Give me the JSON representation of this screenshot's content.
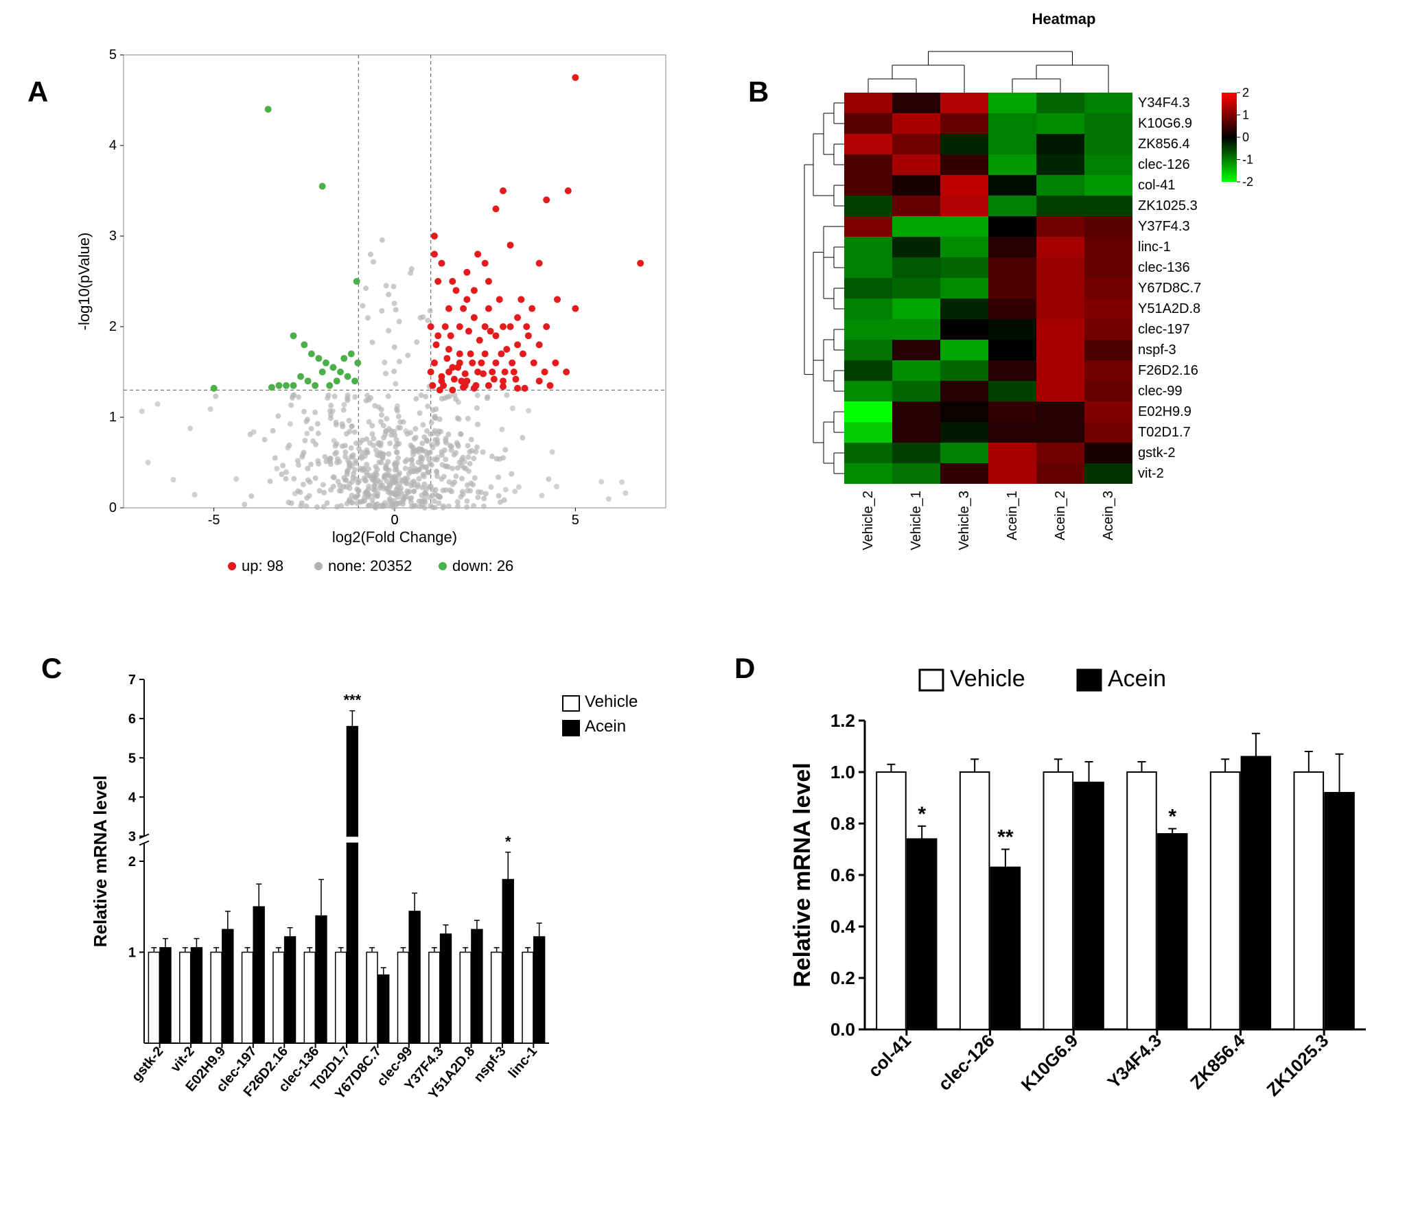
{
  "panelA": {
    "label": "A",
    "type": "scatter",
    "title": "",
    "x_label": "log2(Fold Change)",
    "y_label": "-log10(pValue)",
    "xlim": [
      -7.5,
      7.5
    ],
    "ylim": [
      0,
      5
    ],
    "ytick_step": 1,
    "xtick_step": 5,
    "background_color": "#ffffff",
    "border_color": "#888888",
    "grid_color": "#888888",
    "threshold_lines": {
      "x_neg": -1,
      "x_pos": 1,
      "y": 1.3
    },
    "legend": [
      {
        "label": "up: 98",
        "color": "#e41a1c"
      },
      {
        "label": "none: 20352",
        "color": "#b3b3b3"
      },
      {
        "label": "down: 26",
        "color": "#4daf4a"
      }
    ],
    "colors": {
      "up": "#e41a1c",
      "down": "#4daf4a",
      "none": "#b3b3b3"
    },
    "marker_size": 4,
    "axis_fontsize": 22,
    "tick_fontsize": 20,
    "legend_fontsize": 22,
    "up_points": [
      [
        5.0,
        4.75
      ],
      [
        4.8,
        3.5
      ],
      [
        4.2,
        3.4
      ],
      [
        4.0,
        2.7
      ],
      [
        3.0,
        3.5
      ],
      [
        2.8,
        3.3
      ],
      [
        3.2,
        2.9
      ],
      [
        2.5,
        2.7
      ],
      [
        2.0,
        2.3
      ],
      [
        1.2,
        2.5
      ],
      [
        1.5,
        2.2
      ],
      [
        1.8,
        2.0
      ],
      [
        2.2,
        2.1
      ],
      [
        2.6,
        2.2
      ],
      [
        3.0,
        2.0
      ],
      [
        3.4,
        1.8
      ],
      [
        3.8,
        2.2
      ],
      [
        4.0,
        1.8
      ],
      [
        4.2,
        2.0
      ],
      [
        3.5,
        2.3
      ],
      [
        3.3,
        1.5
      ],
      [
        3.0,
        1.4
      ],
      [
        2.8,
        1.6
      ],
      [
        2.5,
        1.7
      ],
      [
        2.3,
        1.5
      ],
      [
        2.0,
        1.4
      ],
      [
        1.8,
        1.7
      ],
      [
        1.5,
        1.5
      ],
      [
        1.3,
        1.4
      ],
      [
        1.1,
        1.6
      ],
      [
        1.0,
        1.5
      ],
      [
        1.25,
        1.3
      ],
      [
        1.6,
        1.3
      ],
      [
        1.9,
        1.33
      ],
      [
        2.2,
        1.32
      ],
      [
        2.6,
        1.35
      ],
      [
        3.0,
        1.34
      ],
      [
        3.4,
        1.32
      ],
      [
        1.4,
        2.0
      ],
      [
        1.7,
        2.4
      ],
      [
        2.0,
        2.6
      ],
      [
        2.3,
        2.8
      ],
      [
        2.6,
        2.5
      ],
      [
        2.9,
        2.3
      ],
      [
        3.2,
        2.0
      ],
      [
        1.1,
        2.8
      ],
      [
        1.0,
        2.0
      ],
      [
        1.15,
        1.8
      ],
      [
        1.45,
        1.65
      ],
      [
        1.75,
        1.55
      ],
      [
        2.05,
        1.95
      ],
      [
        2.35,
        1.85
      ],
      [
        2.65,
        1.95
      ],
      [
        2.95,
        1.7
      ],
      [
        3.25,
        1.6
      ],
      [
        3.55,
        1.7
      ],
      [
        3.85,
        1.6
      ],
      [
        4.15,
        1.5
      ],
      [
        4.45,
        1.6
      ],
      [
        4.75,
        1.5
      ],
      [
        1.55,
        1.9
      ],
      [
        1.85,
        1.4
      ],
      [
        2.15,
        1.6
      ],
      [
        2.45,
        1.48
      ],
      [
        2.75,
        1.42
      ],
      [
        3.05,
        1.5
      ],
      [
        3.35,
        1.42
      ],
      [
        3.65,
        2.0
      ],
      [
        1.05,
        1.35
      ],
      [
        1.35,
        1.35
      ],
      [
        1.65,
        1.42
      ],
      [
        1.95,
        1.48
      ],
      [
        4.0,
        1.4
      ],
      [
        4.3,
        1.35
      ],
      [
        4.5,
        2.3
      ],
      [
        5.0,
        2.2
      ],
      [
        6.8,
        2.7
      ],
      [
        1.1,
        3.0
      ],
      [
        1.3,
        2.7
      ],
      [
        1.6,
        2.5
      ],
      [
        1.9,
        2.2
      ],
      [
        2.2,
        2.4
      ],
      [
        2.5,
        2.0
      ],
      [
        2.8,
        1.9
      ],
      [
        3.1,
        1.75
      ],
      [
        3.4,
        2.1
      ],
      [
        3.7,
        1.9
      ],
      [
        1.2,
        1.9
      ],
      [
        1.5,
        1.75
      ],
      [
        1.8,
        1.6
      ],
      [
        2.1,
        1.7
      ],
      [
        2.4,
        1.6
      ],
      [
        2.7,
        1.5
      ],
      [
        3.6,
        1.32
      ],
      [
        1.3,
        1.45
      ],
      [
        1.6,
        1.55
      ],
      [
        1.95,
        1.35
      ],
      [
        2.25,
        1.35
      ]
    ],
    "down_points": [
      [
        -3.5,
        4.4
      ],
      [
        -2.0,
        3.55
      ],
      [
        -1.05,
        2.5
      ],
      [
        -2.8,
        1.9
      ],
      [
        -2.5,
        1.8
      ],
      [
        -2.3,
        1.7
      ],
      [
        -2.1,
        1.65
      ],
      [
        -1.9,
        1.6
      ],
      [
        -1.7,
        1.55
      ],
      [
        -1.5,
        1.5
      ],
      [
        -1.3,
        1.45
      ],
      [
        -1.1,
        1.4
      ],
      [
        -2.0,
        1.5
      ],
      [
        -2.2,
        1.35
      ],
      [
        -2.4,
        1.4
      ],
      [
        -2.6,
        1.45
      ],
      [
        -2.8,
        1.35
      ],
      [
        -3.0,
        1.35
      ],
      [
        -3.2,
        1.35
      ],
      [
        -3.4,
        1.33
      ],
      [
        -5.0,
        1.32
      ],
      [
        -1.02,
        1.6
      ],
      [
        -1.2,
        1.7
      ],
      [
        -1.4,
        1.65
      ],
      [
        -1.6,
        1.4
      ],
      [
        -1.8,
        1.35
      ]
    ],
    "none_density": 600
  },
  "panelB": {
    "label": "B",
    "type": "heatmap",
    "title": "Heatmap",
    "title_fontsize": 22,
    "row_labels": [
      "Y34F4.3",
      "K10G6.9",
      "ZK856.4",
      "clec-126",
      "col-41",
      "ZK1025.3",
      "Y37F4.3",
      "linc-1",
      "clec-136",
      "Y67D8C.7",
      "Y51A2D.8",
      "clec-197",
      "nspf-3",
      "F26D2.16",
      "clec-99",
      "E02H9.9",
      "T02D1.7",
      "gstk-2",
      "vit-2"
    ],
    "col_labels": [
      "Vehicle_2",
      "Vehicle_1",
      "Vehicle_3",
      "Acein_1",
      "Acein_2",
      "Acein_3"
    ],
    "label_fontsize": 20,
    "colorbar": {
      "min": -2,
      "max": 2,
      "ticks": [
        -2,
        -1,
        0,
        1,
        2
      ],
      "colors_neg": "#00ff00",
      "colors_mid": "#000000",
      "colors_pos": "#ff0000"
    },
    "values": [
      [
        1.2,
        0.3,
        1.4,
        -1.3,
        -0.8,
        -1.0
      ],
      [
        0.7,
        1.3,
        0.8,
        -1.0,
        -1.1,
        -0.9
      ],
      [
        1.4,
        0.9,
        -0.3,
        -1.0,
        -0.2,
        -0.9
      ],
      [
        0.6,
        1.3,
        0.4,
        -1.2,
        -0.3,
        -1.0
      ],
      [
        0.6,
        0.2,
        1.5,
        -0.1,
        -1.0,
        -1.2
      ],
      [
        -0.5,
        0.8,
        1.4,
        -1.0,
        -0.5,
        -0.5
      ],
      [
        1.0,
        -1.3,
        -1.3,
        0.0,
        0.9,
        0.7
      ],
      [
        -1.0,
        -0.3,
        -1.1,
        0.3,
        1.3,
        0.8
      ],
      [
        -1.0,
        -0.7,
        -0.8,
        0.6,
        1.2,
        0.8
      ],
      [
        -0.7,
        -0.8,
        -1.1,
        0.6,
        1.2,
        0.9
      ],
      [
        -1.0,
        -1.3,
        -0.3,
        0.4,
        1.2,
        1.0
      ],
      [
        -1.1,
        -1.1,
        0.0,
        -0.1,
        1.3,
        0.9
      ],
      [
        -0.9,
        0.3,
        -1.3,
        0.0,
        1.3,
        0.6
      ],
      [
        -0.5,
        -1.1,
        -0.8,
        0.3,
        1.3,
        0.9
      ],
      [
        -1.1,
        -0.8,
        0.3,
        -0.5,
        1.3,
        0.8
      ],
      [
        -2.0,
        0.3,
        0.1,
        0.4,
        0.3,
        1.0
      ],
      [
        -1.6,
        0.3,
        -0.2,
        0.3,
        0.3,
        0.9
      ],
      [
        -0.8,
        -0.5,
        -1.0,
        1.3,
        0.9,
        0.2
      ],
      [
        -1.1,
        -0.9,
        0.4,
        1.3,
        0.8,
        -0.4
      ]
    ]
  },
  "panelC": {
    "label": "C",
    "type": "bar",
    "y_label": "Relative mRNA level",
    "y_break": {
      "low_max": 2.2,
      "high_min": 3,
      "high_max": 7
    },
    "yticks_low": [
      1,
      2
    ],
    "yticks_high": [
      3,
      4,
      5,
      6,
      7
    ],
    "categories": [
      "gstk-2",
      "vit-2",
      "E02H9.9",
      "clec-197",
      "F26D2.16",
      "clec-136",
      "T02D1.7",
      "Y67D8C.7",
      "clec-99",
      "Y37F4.3",
      "Y51A2D.8",
      "nspf-3",
      "linc-1"
    ],
    "series": [
      {
        "name": "Vehicle",
        "fill": "#ffffff",
        "stroke": "#000000",
        "values": [
          1,
          1,
          1,
          1,
          1,
          1,
          1,
          1,
          1,
          1,
          1,
          1,
          1
        ],
        "err": [
          0.05,
          0.05,
          0.05,
          0.05,
          0.05,
          0.05,
          0.05,
          0.05,
          0.05,
          0.05,
          0.05,
          0.05,
          0.05
        ]
      },
      {
        "name": "Acein",
        "fill": "#000000",
        "stroke": "#000000",
        "values": [
          1.05,
          1.05,
          1.25,
          1.5,
          1.17,
          1.4,
          5.8,
          0.75,
          1.45,
          1.2,
          1.25,
          1.8,
          1.17
        ],
        "err": [
          0.1,
          0.1,
          0.2,
          0.25,
          0.1,
          0.4,
          0.4,
          0.08,
          0.2,
          0.1,
          0.1,
          0.3,
          0.15
        ]
      }
    ],
    "sig_marks": [
      {
        "idx": 6,
        "label": "***"
      },
      {
        "idx": 11,
        "label": "*"
      }
    ],
    "axis_fontsize": 22,
    "tick_fontsize": 20,
    "label_fontsize": 26,
    "legend_fontsize": 24,
    "bar_width": 0.35,
    "gap": 0.06
  },
  "panelD": {
    "label": "D",
    "type": "bar",
    "y_label": "Relative mRNA level",
    "ylim": [
      0,
      1.2
    ],
    "yticks": [
      0,
      0.2,
      0.4,
      0.6,
      0.8,
      1.0,
      1.2
    ],
    "categories": [
      "col-41",
      "clec-126",
      "K10G6.9",
      "Y34F4.3",
      "ZK856.4",
      "ZK1025.3"
    ],
    "series": [
      {
        "name": "Vehicle",
        "fill": "#ffffff",
        "stroke": "#000000",
        "values": [
          1.0,
          1.0,
          1.0,
          1.0,
          1.0,
          1.0
        ],
        "err": [
          0.03,
          0.05,
          0.05,
          0.04,
          0.05,
          0.08
        ]
      },
      {
        "name": "Acein",
        "fill": "#000000",
        "stroke": "#000000",
        "values": [
          0.74,
          0.63,
          0.96,
          0.76,
          1.06,
          0.92
        ],
        "err": [
          0.05,
          0.07,
          0.08,
          0.02,
          0.09,
          0.15
        ]
      }
    ],
    "sig_marks": [
      {
        "idx": 0,
        "label": "*"
      },
      {
        "idx": 1,
        "label": "**"
      },
      {
        "idx": 3,
        "label": "*"
      }
    ],
    "axis_fontsize": 28,
    "tick_fontsize": 26,
    "label_fontsize": 34,
    "legend_fontsize": 34,
    "bar_width": 0.35,
    "gap": 0.06
  }
}
